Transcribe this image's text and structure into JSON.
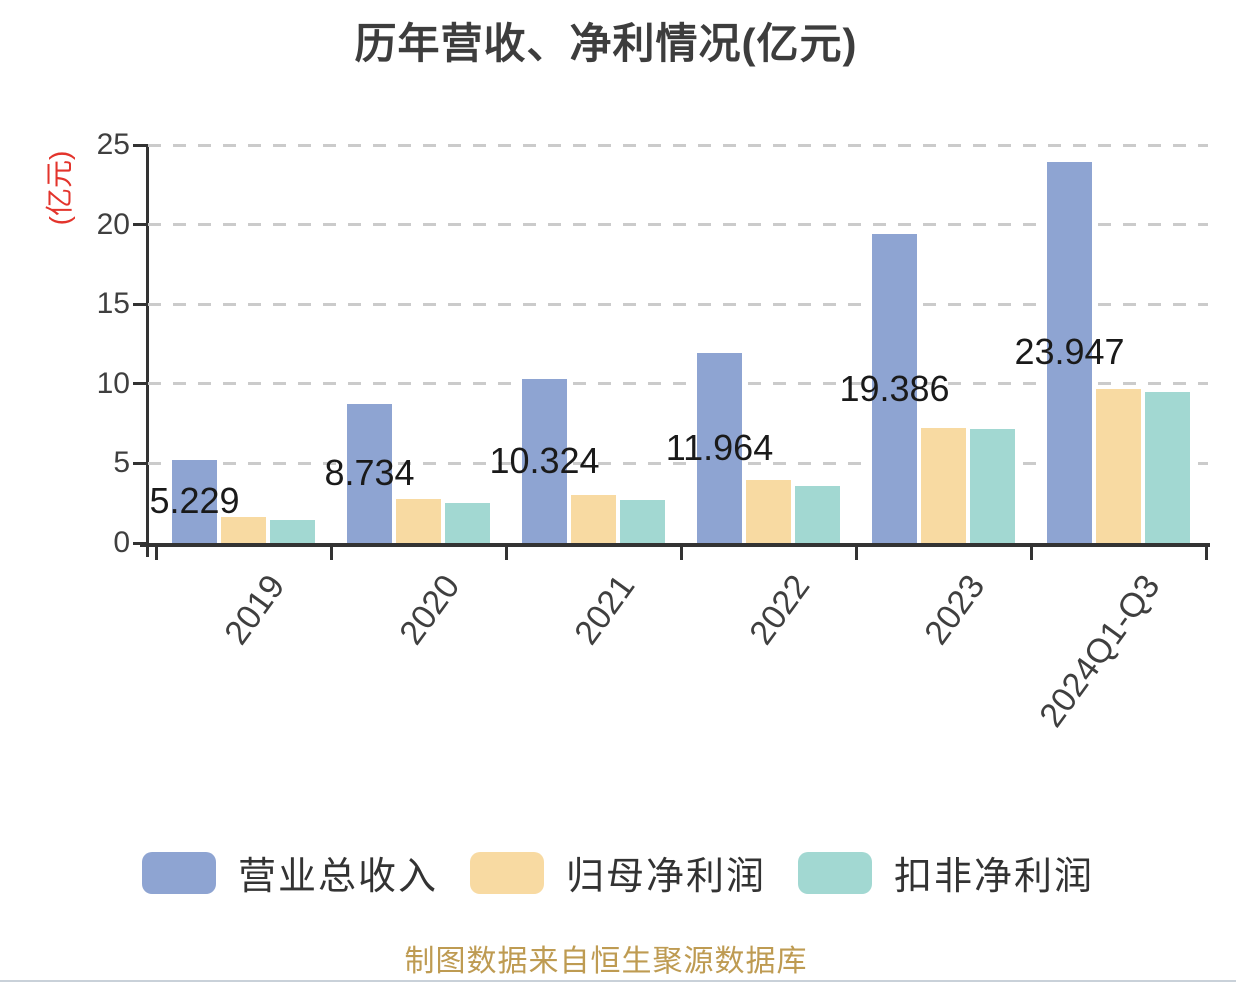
{
  "chart_data": {
    "type": "bar",
    "title": "历年营收、净利情况(亿元)",
    "ylabel": "(亿元)",
    "ylim": [
      0,
      25
    ],
    "y_ticks": [
      0,
      5,
      10,
      15,
      20,
      25
    ],
    "grid": "horizontal-dashed",
    "legend_position": "bottom",
    "categories": [
      "2019",
      "2020",
      "2021",
      "2022",
      "2023",
      "2024Q1-Q3"
    ],
    "series": [
      {
        "name": "营业总收入",
        "color": "#8EA4D2",
        "values": [
          5.229,
          8.734,
          10.324,
          11.964,
          19.386,
          23.947
        ],
        "data_labels": [
          "5.229",
          "8.734",
          "10.324",
          "11.964",
          "19.386",
          "23.947"
        ]
      },
      {
        "name": "归母净利润",
        "color": "#F8DAA2",
        "values": [
          1.66,
          2.75,
          3.0,
          3.95,
          7.25,
          9.7
        ]
      },
      {
        "name": "扣非净利润",
        "color": "#A2D8D2",
        "values": [
          1.42,
          2.54,
          2.67,
          3.6,
          7.15,
          9.5
        ]
      }
    ],
    "source_note": "制图数据来自恒生聚源数据库"
  },
  "colors": {
    "title_text": "#3D3D3D",
    "axis_line": "#333333",
    "tick_label_text": "#3F3F3F",
    "grid_line": "#CBCBCB",
    "y_unit_text": "#E3342C",
    "value_label_text": "#1A1A1A",
    "legend_text": "#333333",
    "source_text": "#BE9B52",
    "divider": "#C9D1D9"
  }
}
